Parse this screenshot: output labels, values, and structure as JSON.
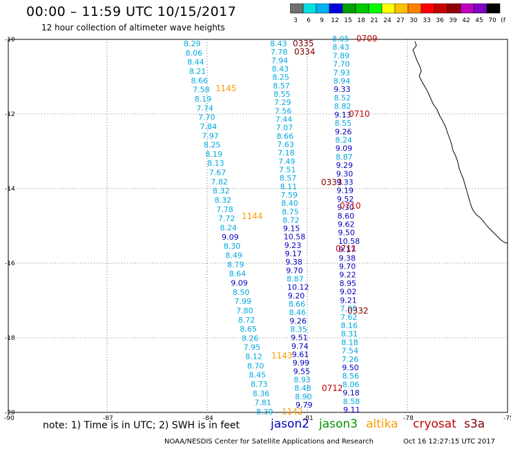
{
  "header": {
    "title": "00:00  –  11:59 UTC 10/15/2017",
    "subtitle": "12 hour collection of altimeter wave heights"
  },
  "colorbar": {
    "labels": [
      "3",
      "6",
      "9",
      "12",
      "15",
      "18",
      "21",
      "24",
      "27",
      "30",
      "33",
      "36",
      "39",
      "42",
      "45",
      "70",
      "(ft)"
    ],
    "colors": [
      "#707070",
      "#00e0e0",
      "#00b0f0",
      "#0000e0",
      "#00a000",
      "#00c800",
      "#00ff00",
      "#ffff00",
      "#ffc000",
      "#ff8000",
      "#ff0000",
      "#c80000",
      "#900000",
      "#c000c0",
      "#8000c0",
      "#000000"
    ]
  },
  "axes": {
    "lat_labels": [
      "-10",
      "-12",
      "-14",
      "-16",
      "-18",
      "-20"
    ],
    "lon_labels": [
      "-90",
      "-87",
      "-84",
      "-81",
      "-78",
      "-75"
    ]
  },
  "colors": {
    "jason2": "#0000c0",
    "jason3": "#009000",
    "altika": "#ff9900",
    "cryosat": "#c00000",
    "s3a": "#800000",
    "swh_light": "#00a8e0",
    "swh_dark": "#0000c0",
    "coast": "#000000"
  },
  "time_labels": [
    {
      "text": "0709",
      "sat": "cryosat"
    },
    {
      "text": "0335",
      "sat": "s3a"
    },
    {
      "text": "0334",
      "sat": "s3a"
    },
    {
      "text": "1145",
      "sat": "altika"
    },
    {
      "text": "0710",
      "sat": "cryosat"
    },
    {
      "text": "0333",
      "sat": "s3a"
    },
    {
      "text": "0710",
      "sat": "cryosat"
    },
    {
      "text": "1144",
      "sat": "altika"
    },
    {
      "text": "0711",
      "sat": "cryosat"
    },
    {
      "text": "0332",
      "sat": "s3a"
    },
    {
      "text": "1143",
      "sat": "altika"
    },
    {
      "text": "0712",
      "sat": "cryosat"
    },
    {
      "text": "1142",
      "sat": "altika"
    }
  ],
  "tracks": {
    "altika": [
      "8.29",
      "8.06",
      "8.44",
      "8.21",
      "8.66",
      "7.58",
      "8.19",
      "7.74",
      "7.70",
      "7.84",
      "7.97",
      "8.25",
      "8.19",
      "8.13",
      "7.67",
      "7.82",
      "8.32",
      "8.32",
      "7.78",
      "7.72",
      "8.24",
      "9.09",
      "8.30",
      "8.49",
      "8.79",
      "8.64",
      "9.09",
      "8.50",
      "7.99",
      "7.80",
      "8.72",
      "8.65",
      "8.26",
      "7.95",
      "8.12",
      "8.70",
      "8.45",
      "8.73",
      "8.36",
      "7.81",
      "8.39"
    ],
    "s3a": [
      "8.43",
      "7.78",
      "7.94",
      "8.43",
      "8.25",
      "8.57",
      "8.55",
      "7.29",
      "7.56",
      "7.44",
      "7.07",
      "8.66",
      "7.63",
      "7.18",
      "7.49",
      "7.51",
      "8.57",
      "8.11",
      "7.59",
      "8.40",
      "8.75",
      "8.72",
      "9.15",
      "10.58",
      "9.23",
      "9.17",
      "9.38",
      "9.70",
      "8.87",
      "10.12",
      "9.20",
      "8.66",
      "8.46",
      "9.26",
      "8.35",
      "9.51",
      "9.74",
      "9.61",
      "9.99",
      "9.55",
      "8.93",
      "8.48",
      "8.90",
      "9.79"
    ],
    "cryosat": [
      "8.05",
      "8.43",
      "7.89",
      "7.70",
      "7.93",
      "8.94",
      "9.33",
      "8.52",
      "8.82",
      "9.13",
      "8.55",
      "9.26",
      "8.24",
      "9.09",
      "8.87",
      "9.29",
      "9.30",
      "9.33",
      "9.19",
      "9.52",
      "9.30",
      "8.60",
      "9.62",
      "9.50",
      "10.58",
      "9.17",
      "9.38",
      "9.70",
      "9.22",
      "8.95",
      "9.02",
      "9.21",
      "7.00",
      "7.62",
      "8.16",
      "8.31",
      "8.18",
      "7.54",
      "7.26",
      "9.50",
      "8.56",
      "8.06",
      "9.18",
      "8.58",
      "9.11"
    ]
  },
  "legend": {
    "note": "note: 1) Time is in UTC; 2) SWH is in feet",
    "jason2": "jason2",
    "jason3": "jason3",
    "altika": "altika",
    "cryosat": "cryosat",
    "s3a": "s3a"
  },
  "footer": {
    "credit": "NOAA/NESDIS Center for Satellite Applications and Research",
    "timestamp": "Oct 16 12:27:15 UTC 2017"
  }
}
